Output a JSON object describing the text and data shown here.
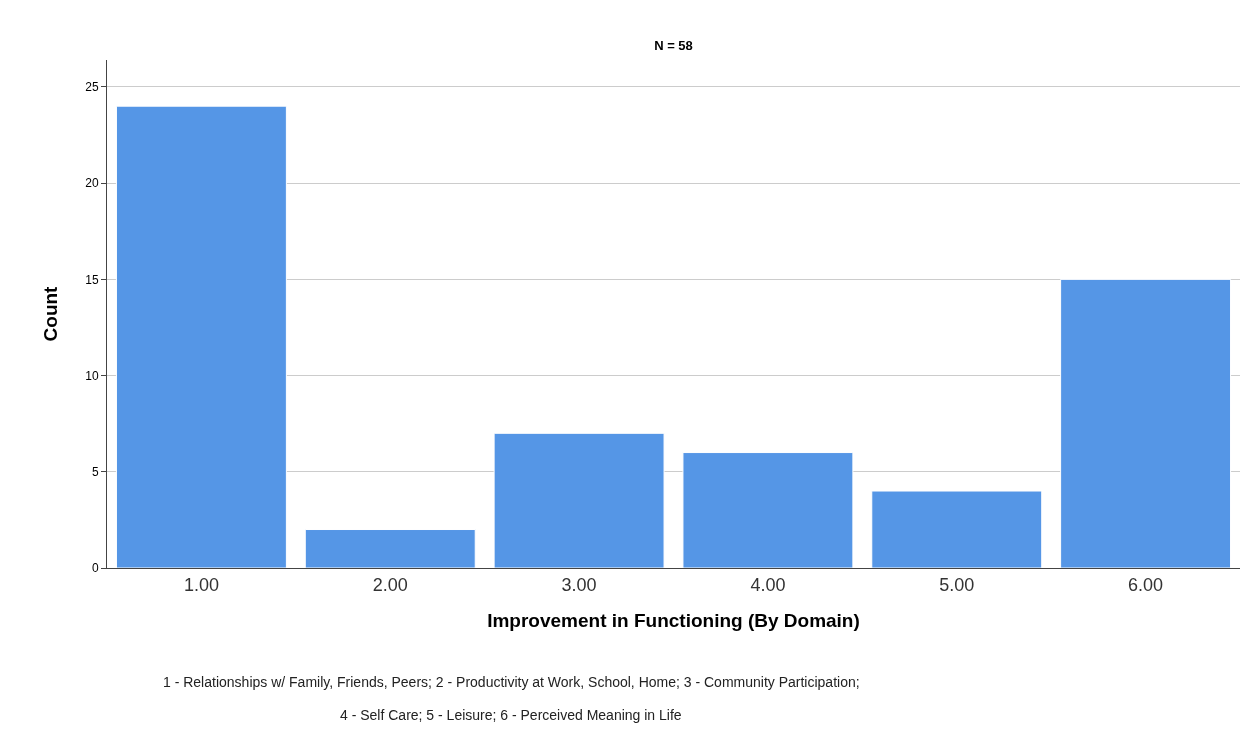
{
  "chart_data": {
    "type": "bar",
    "title": "N = 58",
    "xlabel": "Improvement in Functioning (By Domain)",
    "ylabel": "Count",
    "categories": [
      "1.00",
      "2.00",
      "3.00",
      "4.00",
      "5.00",
      "6.00"
    ],
    "values": [
      24,
      2,
      7,
      6,
      4,
      15
    ],
    "color": "#5596e6",
    "ylim": [
      0,
      26.4
    ],
    "yticks": [
      0,
      5,
      10,
      15,
      20,
      25
    ],
    "grid": "y",
    "legend": false,
    "annotations": [
      "1 - Relationships w/ Family, Friends, Peers; 2 - Productivity at Work, School, Home; 3 - Community Participation;",
      "4 - Self Care; 5 - Leisure; 6 - Perceived Meaning in Life"
    ]
  }
}
